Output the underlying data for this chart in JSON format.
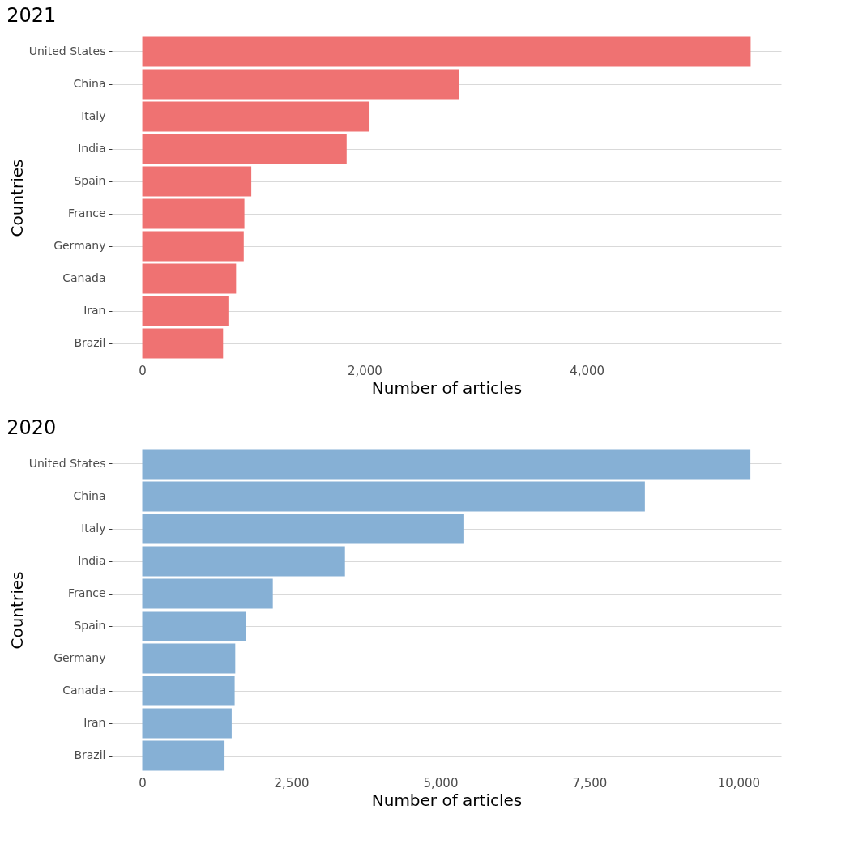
{
  "chart_data": [
    {
      "type": "bar",
      "orientation": "horizontal",
      "title": "2021",
      "xlabel": "Number of articles",
      "ylabel": "Countries",
      "categories": [
        "United States",
        "China",
        "Italy",
        "India",
        "Spain",
        "France",
        "Germany",
        "Canada",
        "Iran",
        "Brazil"
      ],
      "series": [
        {
          "color": "#ef7272",
          "values": [
            5475,
            2854,
            2045,
            1839,
            981,
            919,
            913,
            844,
            775,
            727
          ]
        }
      ],
      "xlim": [
        -274,
        5749
      ],
      "xticks": [
        {
          "value": 0,
          "label": "0"
        },
        {
          "value": 2000,
          "label": "2,000"
        },
        {
          "value": 4000,
          "label": "4,000"
        }
      ],
      "grid": "y"
    },
    {
      "type": "bar",
      "orientation": "horizontal",
      "title": "2020",
      "xlabel": "Number of articles",
      "ylabel": "Countries",
      "categories": [
        "United States",
        "China",
        "Italy",
        "India",
        "France",
        "Spain",
        "Germany",
        "Canada",
        "Iran",
        "Brazil"
      ],
      "series": [
        {
          "color": "#86b0d5",
          "values": [
            10200,
            8430,
            5400,
            3400,
            2190,
            1740,
            1560,
            1550,
            1500,
            1380
          ]
        }
      ],
      "xlim": [
        -510,
        10715
      ],
      "xticks": [
        {
          "value": 0,
          "label": "0"
        },
        {
          "value": 2500,
          "label": "2,500"
        },
        {
          "value": 5000,
          "label": "5,000"
        },
        {
          "value": 7500,
          "label": "7,500"
        },
        {
          "value": 10000,
          "label": "10,000"
        }
      ],
      "grid": "y"
    }
  ]
}
